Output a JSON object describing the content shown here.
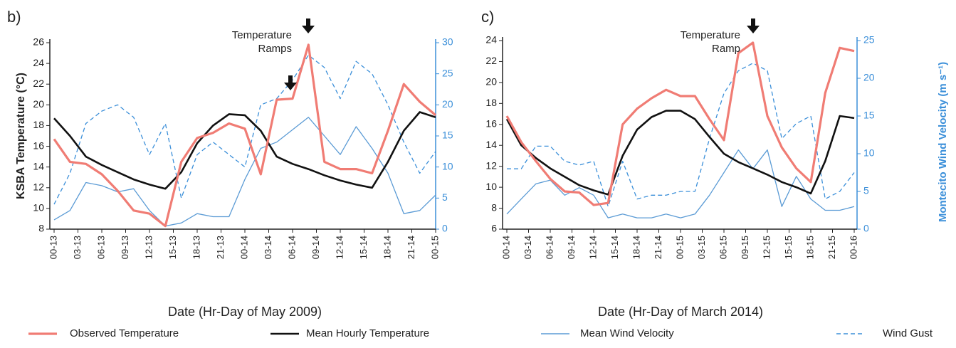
{
  "chart_data": [
    {
      "type": "line",
      "panel": "b)",
      "ylabel": "KSBA Temperature (°C)",
      "xlabel": "Date (Hr-Day of May 2009)",
      "annotations": [
        "Temperature Ramps"
      ],
      "x": [
        0,
        2,
        4,
        6,
        8,
        10,
        12,
        14,
        16,
        18,
        20,
        22,
        24,
        26,
        28,
        30,
        32,
        34,
        36,
        38,
        40,
        42,
        44,
        46,
        48
      ],
      "xlim": [
        0,
        48
      ],
      "xticks": [
        {
          "value": 0,
          "label": "00-13"
        },
        {
          "value": 3,
          "label": "03-13"
        },
        {
          "value": 6,
          "label": "06-13"
        },
        {
          "value": 9,
          "label": "09-13"
        },
        {
          "value": 12,
          "label": "12-13"
        },
        {
          "value": 15,
          "label": "15-13"
        },
        {
          "value": 18,
          "label": "18-13"
        },
        {
          "value": 21,
          "label": "21-13"
        },
        {
          "value": 24,
          "label": "00-14"
        },
        {
          "value": 27,
          "label": "03-14"
        },
        {
          "value": 30,
          "label": "06-14"
        },
        {
          "value": 33,
          "label": "09-14"
        },
        {
          "value": 36,
          "label": "12-14"
        },
        {
          "value": 39,
          "label": "15-14"
        },
        {
          "value": 42,
          "label": "18-14"
        },
        {
          "value": 45,
          "label": "21-14"
        },
        {
          "value": 48,
          "label": "00-15"
        }
      ],
      "ylim": [
        8,
        26
      ],
      "yticks": [
        8,
        10,
        12,
        14,
        16,
        18,
        20,
        22,
        24,
        26
      ],
      "y2lim": [
        0,
        30
      ],
      "y2ticks": [
        0,
        5,
        10,
        15,
        20,
        25,
        30
      ],
      "series": [
        {
          "name": "Observed Temperature",
          "color": "#f07c74",
          "values": [
            16.7,
            14.5,
            14.3,
            13.3,
            11.7,
            9.8,
            9.5,
            8.3,
            14.5,
            16.8,
            17.3,
            18.2,
            17.7,
            13.3,
            20.5,
            20.6,
            25.8,
            14.5,
            13.8,
            13.8,
            13.4,
            17.5,
            22.0,
            20.3,
            19.0
          ]
        },
        {
          "name": "Mean Hourly Temperature",
          "color": "#111111",
          "values": [
            18.7,
            17.0,
            15.0,
            14.2,
            13.5,
            12.8,
            12.3,
            11.9,
            13.5,
            16.3,
            18.0,
            19.1,
            19.0,
            17.5,
            15.0,
            14.3,
            13.8,
            13.2,
            12.7,
            12.3,
            12.0,
            14.5,
            17.5,
            19.3,
            18.8
          ]
        },
        {
          "name": "Mean Wind Velocity",
          "color": "#5b9bd5",
          "axis": "y2",
          "values": [
            1.5,
            3,
            7.5,
            7,
            6,
            6.5,
            3,
            0.5,
            1,
            2.5,
            2,
            2,
            8,
            13,
            14,
            16,
            18,
            15,
            12,
            16.5,
            13,
            9,
            2.5,
            3,
            5.5
          ]
        },
        {
          "name": "Wind Gust",
          "color": "#3b8fd9",
          "axis": "y2",
          "dash": true,
          "values": [
            4,
            9,
            17,
            19,
            20,
            18,
            12,
            17,
            5,
            12,
            14,
            12,
            10,
            20,
            21,
            24,
            28,
            26,
            21,
            27,
            25,
            20,
            14,
            9,
            12.5
          ]
        }
      ]
    },
    {
      "type": "line",
      "panel": "c)",
      "y2label": "Montecito Wind Velocity (m s⁻¹)",
      "xlabel": "Date (Hr-Day of March 2014)",
      "annotations": [
        "Temperature Ramp"
      ],
      "x": [
        0,
        2,
        4,
        6,
        8,
        10,
        12,
        14,
        16,
        18,
        20,
        22,
        24,
        26,
        28,
        30,
        32,
        34,
        36,
        38,
        40,
        42,
        44,
        46,
        48
      ],
      "xlim": [
        0,
        48
      ],
      "xticks": [
        {
          "value": 0,
          "label": "00-14"
        },
        {
          "value": 3,
          "label": "03-14"
        },
        {
          "value": 6,
          "label": "06-14"
        },
        {
          "value": 9,
          "label": "09-14"
        },
        {
          "value": 12,
          "label": "12-14"
        },
        {
          "value": 15,
          "label": "15-14"
        },
        {
          "value": 18,
          "label": "18-14"
        },
        {
          "value": 21,
          "label": "21-14"
        },
        {
          "value": 24,
          "label": "00-15"
        },
        {
          "value": 27,
          "label": "03-15"
        },
        {
          "value": 30,
          "label": "06-15"
        },
        {
          "value": 33,
          "label": "09-15"
        },
        {
          "value": 36,
          "label": "12-15"
        },
        {
          "value": 39,
          "label": "15-15"
        },
        {
          "value": 42,
          "label": "18-15"
        },
        {
          "value": 45,
          "label": "21-15"
        },
        {
          "value": 48,
          "label": "00-16"
        }
      ],
      "ylim": [
        6,
        24
      ],
      "yticks": [
        6,
        8,
        10,
        12,
        14,
        16,
        18,
        20,
        22,
        24
      ],
      "y2lim": [
        0,
        25
      ],
      "y2ticks": [
        0,
        5,
        10,
        15,
        20,
        25
      ],
      "series": [
        {
          "name": "Observed Temperature",
          "color": "#f07c74",
          "values": [
            16.8,
            14.3,
            12.5,
            10.8,
            9.6,
            9.5,
            8.3,
            8.5,
            16.0,
            17.5,
            18.5,
            19.3,
            18.7,
            18.7,
            16.5,
            14.5,
            22.8,
            23.8,
            16.8,
            13.8,
            11.8,
            10.5,
            19.0,
            23.3,
            23.0
          ]
        },
        {
          "name": "Mean Hourly Temperature",
          "color": "#111111",
          "values": [
            16.5,
            14.0,
            12.8,
            11.8,
            11.0,
            10.2,
            9.7,
            9.3,
            13.0,
            15.5,
            16.7,
            17.3,
            17.3,
            16.5,
            14.8,
            13.2,
            12.4,
            11.8,
            11.2,
            10.5,
            10.0,
            9.4,
            12.5,
            16.8,
            16.6
          ]
        },
        {
          "name": "Mean Wind Velocity",
          "color": "#5b9bd5",
          "axis": "y2",
          "values": [
            2,
            4,
            6,
            6.5,
            4.5,
            5.5,
            4.5,
            1.5,
            2,
            1.5,
            1.5,
            2,
            1.5,
            2,
            4.5,
            7.5,
            10.5,
            8,
            10.5,
            3,
            7,
            4,
            2.5,
            2.5,
            3
          ]
        },
        {
          "name": "Wind Gust",
          "color": "#3b8fd9",
          "axis": "y2",
          "dash": true,
          "values": [
            8,
            8,
            11,
            11,
            9,
            8.5,
            9,
            3,
            9,
            4,
            4.5,
            4.5,
            5,
            5,
            12,
            18,
            21,
            22,
            21,
            12,
            14,
            15,
            4,
            5,
            7.5
          ]
        }
      ]
    }
  ]
}
